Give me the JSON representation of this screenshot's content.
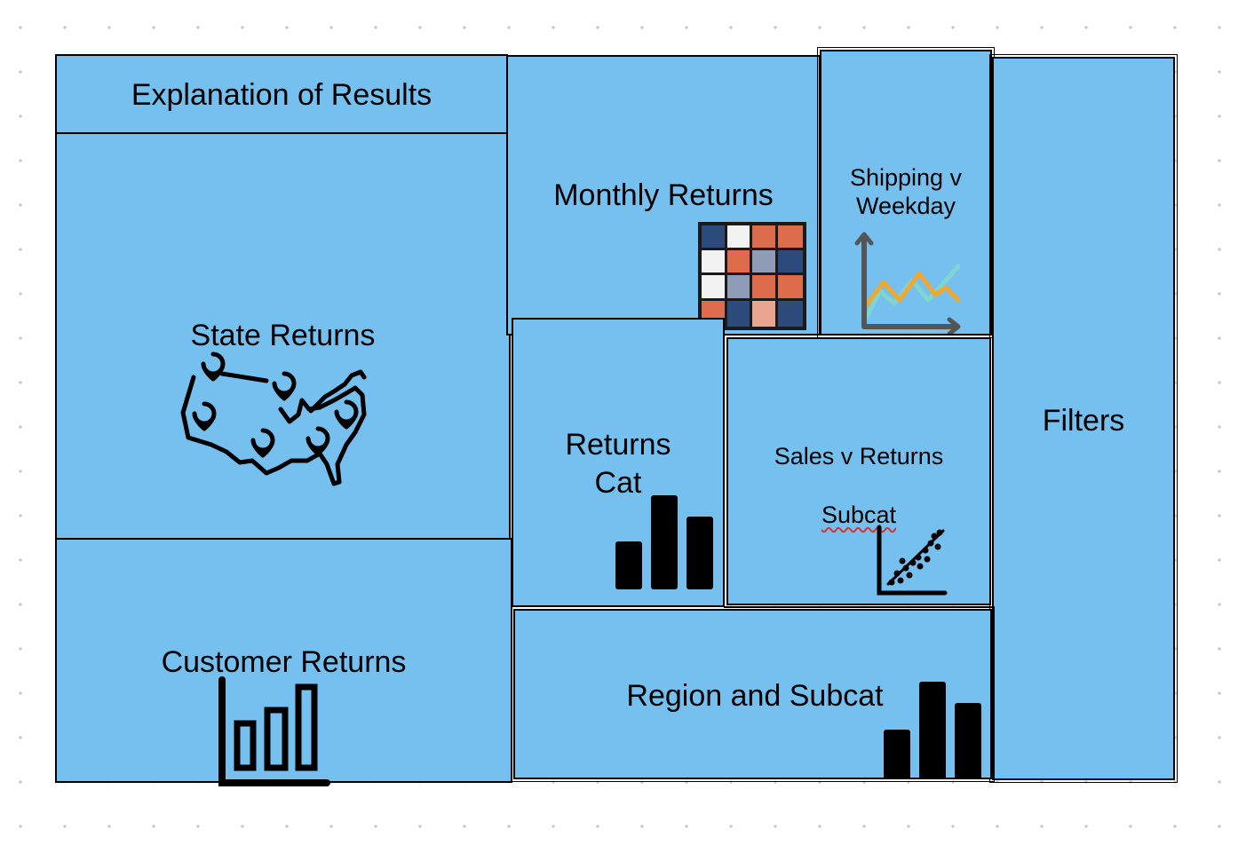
{
  "panels": {
    "explanation": {
      "title": "Explanation of Results"
    },
    "state": {
      "title": "State Returns",
      "icon": "us-map-pins-icon"
    },
    "customer": {
      "title": "Customer Returns",
      "icon": "bar-chart-outline-icon"
    },
    "monthly": {
      "title": "Monthly Returns",
      "icon": "heatmap-grid-icon"
    },
    "shipping": {
      "title": "Shipping v\nWeekday",
      "icon": "line-chart-icon"
    },
    "returns_cat": {
      "title": "Returns\nCat",
      "icon": "bar-chart-icon"
    },
    "sales_returns": {
      "title_line1": "Sales v Returns",
      "title_line2": "Subcat",
      "icon": "scatter-plot-icon"
    },
    "region": {
      "title": "Region and Subcat",
      "icon": "bar-chart-icon"
    },
    "filters": {
      "title": "Filters"
    }
  },
  "colors": {
    "panel_fill": "#76c0f0",
    "border": "#000000",
    "heatmap_navy": "#2c4a7c",
    "heatmap_orange": "#dc6c4c",
    "heatmap_white": "#f2f2f2",
    "heatmap_gray": "#8e9cb8",
    "heatmap_peach": "#eaa58f",
    "line_teal": "#7fd6d0",
    "line_orange": "#f0a830"
  }
}
